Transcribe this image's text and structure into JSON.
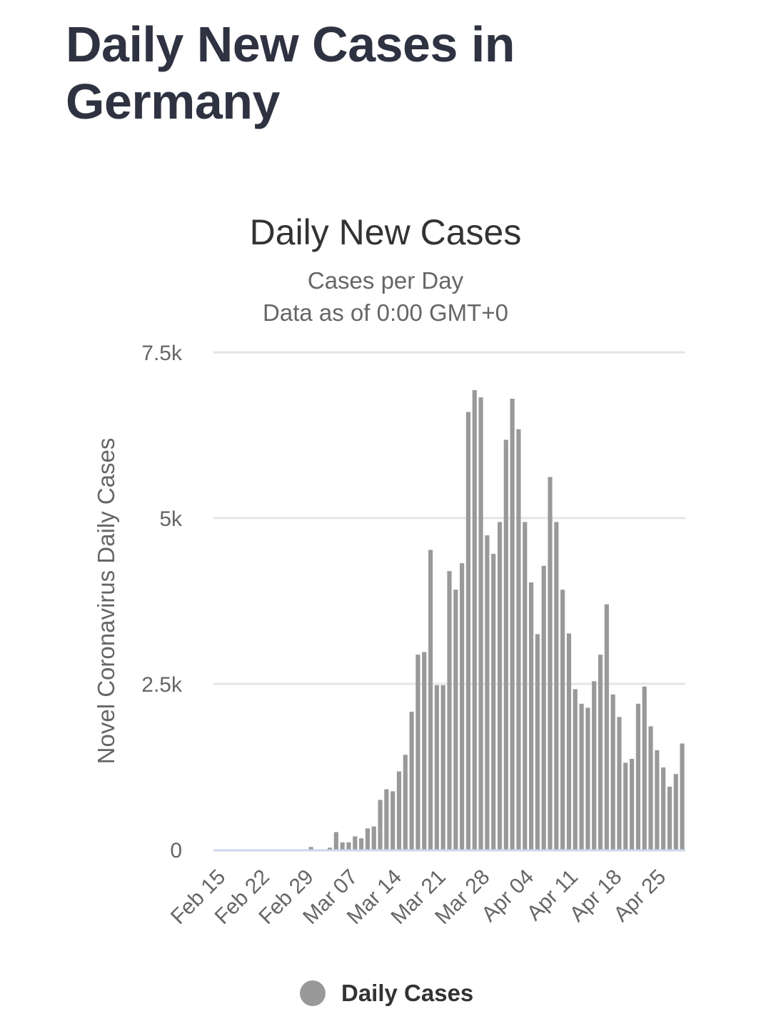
{
  "page": {
    "title": "Daily New Cases in Germany"
  },
  "colors": {
    "title": "#2f3241",
    "bar": "#999999",
    "grid": "#e6e6e6",
    "axis": "#ccd6eb",
    "text": "#666666"
  },
  "chart_data": {
    "type": "bar",
    "title": "Daily New Cases",
    "subtitle_lines": [
      "Cases per Day",
      "Data as of 0:00 GMT+0"
    ],
    "ylabel": "Novel Coronavirus Daily Cases",
    "xlabel": "",
    "ylim": [
      0,
      7500
    ],
    "yticks": [
      {
        "value": 0,
        "label": "0"
      },
      {
        "value": 2500,
        "label": "2.5k"
      },
      {
        "value": 5000,
        "label": "5k"
      },
      {
        "value": 7500,
        "label": "7.5k"
      }
    ],
    "xticks": [
      "Feb 15",
      "Feb 22",
      "Feb 29",
      "Mar 07",
      "Mar 14",
      "Mar 21",
      "Mar 28",
      "Apr 04",
      "Apr 11",
      "Apr 18",
      "Apr 25"
    ],
    "grid": true,
    "legend": "bottom-center",
    "series": [
      {
        "name": "Daily Cases",
        "color": "#999999",
        "start_date": "Feb 15",
        "values": [
          0,
          0,
          0,
          0,
          0,
          0,
          0,
          0,
          0,
          0,
          0,
          0,
          0,
          0,
          0,
          40,
          0,
          0,
          30,
          265,
          110,
          110,
          200,
          170,
          320,
          350,
          750,
          910,
          880,
          1180,
          1430,
          2080,
          2940,
          2980,
          4520,
          2480,
          2480,
          4200,
          3920,
          4320,
          6600,
          6930,
          6820,
          4740,
          4460,
          4940,
          6180,
          6800,
          6340,
          4940,
          4030,
          3250,
          4280,
          5620,
          4940,
          3920,
          3260,
          2420,
          2200,
          2140,
          2540,
          2940,
          3700,
          2340,
          2000,
          1310,
          1370,
          2200,
          2460,
          1860,
          1500,
          1240,
          950,
          1140,
          1600
        ]
      }
    ]
  }
}
